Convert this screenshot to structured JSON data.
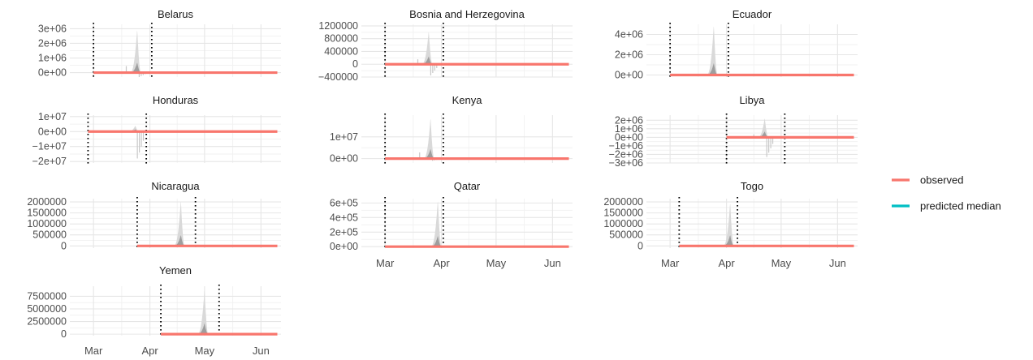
{
  "chart_data": {
    "type": "line",
    "layout": "small-multiples",
    "grid": true,
    "legend_position": "right",
    "x_ticks": [
      "Mar",
      "Apr",
      "May",
      "Jun"
    ],
    "x_domain": [
      "2020-02-17",
      "2020-06-12"
    ],
    "legend": {
      "entries": [
        {
          "label": "observed",
          "color": "#F8766D"
        },
        {
          "label": "predicted median",
          "color": "#00BFC4"
        }
      ]
    },
    "panels": [
      {
        "title": "Belarus",
        "yticks": [
          0,
          1000000,
          2000000,
          3000000
        ],
        "ytick_labels": [
          "0e+00",
          "1e+06",
          "2e+06",
          "3e+06"
        ],
        "ylim": [
          -300000,
          3300000
        ],
        "vlines": [
          "2020-03-01",
          "2020-04-02"
        ],
        "observed": {
          "start": "2020-03-01",
          "end": "2020-06-10",
          "value": 0
        },
        "predicted": {
          "start": "2020-03-01",
          "end": "2020-04-02",
          "peak_date": "2020-03-25",
          "peak_outer": 3000000,
          "peak_inner": 700000,
          "spike_min": -300000
        }
      },
      {
        "title": "Bosnia and Herzegovina",
        "yticks": [
          -400000,
          0,
          400000,
          800000,
          1200000
        ],
        "ytick_labels": [
          "−400000",
          "0",
          "400000",
          "800000",
          "1200000"
        ],
        "ylim": [
          -400000,
          1250000
        ],
        "vlines": [
          "2020-03-01",
          "2020-04-02"
        ],
        "observed": {
          "start": "2020-03-01",
          "end": "2020-06-10",
          "value": 0
        },
        "predicted": {
          "start": "2020-03-01",
          "end": "2020-04-02",
          "peak_date": "2020-03-25",
          "peak_outer": 1050000,
          "peak_inner": 250000,
          "spike_min": -350000
        }
      },
      {
        "title": "Ecuador",
        "yticks": [
          0,
          2000000,
          4000000
        ],
        "ytick_labels": [
          "0e+00",
          "2e+06",
          "4e+06"
        ],
        "ylim": [
          -200000,
          5000000
        ],
        "vlines": [
          "2020-03-01",
          "2020-04-02"
        ],
        "observed": {
          "start": "2020-03-01",
          "end": "2020-06-10",
          "value": 0
        },
        "predicted": {
          "start": "2020-03-01",
          "end": "2020-04-02",
          "peak_date": "2020-03-25",
          "peak_outer": 5000000,
          "peak_inner": 1200000,
          "spike_min": 0
        }
      },
      {
        "title": "Honduras",
        "yticks": [
          -20000000,
          -10000000,
          0,
          10000000
        ],
        "ytick_labels": [
          "−2e+07",
          "−1e+07",
          "0e+00",
          "1e+07"
        ],
        "ylim": [
          -21000000,
          11000000
        ],
        "vlines": [
          "2020-02-27",
          "2020-03-30"
        ],
        "observed": {
          "start": "2020-02-27",
          "end": "2020-06-10",
          "value": 0
        },
        "predicted": {
          "start": "2020-02-27",
          "end": "2020-03-30",
          "peak_date": "2020-03-24",
          "peak_outer": 4000000,
          "peak_inner": 1500000,
          "spike_min": -18000000
        }
      },
      {
        "title": "Kenya",
        "yticks": [
          0,
          10000000
        ],
        "ytick_labels": [
          "0e+00",
          "1e+07"
        ],
        "ylim": [
          -2000000,
          20000000
        ],
        "vlines": [
          "2020-03-01",
          "2020-04-02"
        ],
        "observed": {
          "start": "2020-03-01",
          "end": "2020-06-10",
          "value": 0
        },
        "predicted": {
          "start": "2020-03-01",
          "end": "2020-04-02",
          "peak_date": "2020-03-26",
          "peak_outer": 19000000,
          "peak_inner": 4500000,
          "spike_min": -1000000
        }
      },
      {
        "title": "Libya",
        "yticks": [
          -3000000,
          -2000000,
          -1000000,
          0,
          1000000,
          2000000
        ],
        "ytick_labels": [
          "−3e+06",
          "−2e+06",
          "−1e+06",
          "0e+00",
          "1e+06",
          "2e+06"
        ],
        "ylim": [
          -3000000,
          2600000
        ],
        "vlines": [
          "2020-04-01",
          "2020-05-03"
        ],
        "observed": {
          "start": "2020-04-01",
          "end": "2020-06-10",
          "value": 0
        },
        "predicted": {
          "start": "2020-04-01",
          "end": "2020-05-03",
          "peak_date": "2020-04-22",
          "peak_outer": 2300000,
          "peak_inner": 700000,
          "spike_min": -2300000
        }
      },
      {
        "title": "Nicaragua",
        "yticks": [
          0,
          500000,
          1000000,
          1500000,
          2000000
        ],
        "ytick_labels": [
          "0",
          "500000",
          "1000000",
          "1500000",
          "2000000"
        ],
        "ylim": [
          -100000,
          2150000
        ],
        "vlines": [
          "2020-03-25",
          "2020-04-26"
        ],
        "observed": {
          "start": "2020-03-25",
          "end": "2020-06-10",
          "value": 0
        },
        "predicted": {
          "start": "2020-03-25",
          "end": "2020-04-26",
          "peak_date": "2020-04-18",
          "peak_outer": 2100000,
          "peak_inner": 500000,
          "spike_min": 0
        }
      },
      {
        "title": "Qatar",
        "yticks": [
          0,
          200000,
          400000,
          600000
        ],
        "ytick_labels": [
          "0e+00",
          "2e+05",
          "4e+05",
          "6e+05"
        ],
        "ylim": [
          -20000,
          660000
        ],
        "vlines": [
          "2020-03-01",
          "2020-04-02"
        ],
        "observed": {
          "start": "2020-03-01",
          "end": "2020-06-10",
          "value": 0
        },
        "predicted": {
          "start": "2020-03-01",
          "end": "2020-04-02",
          "peak_date": "2020-03-30",
          "peak_outer": 650000,
          "peak_inner": 150000,
          "spike_min": 0
        }
      },
      {
        "title": "Togo",
        "yticks": [
          0,
          500000,
          1000000,
          1500000,
          2000000
        ],
        "ytick_labels": [
          "0",
          "500000",
          "1000000",
          "1500000",
          "2000000"
        ],
        "ylim": [
          -100000,
          2150000
        ],
        "vlines": [
          "2020-03-06",
          "2020-04-07"
        ],
        "observed": {
          "start": "2020-03-06",
          "end": "2020-06-10",
          "value": 0
        },
        "predicted": {
          "start": "2020-03-06",
          "end": "2020-04-07",
          "peak_date": "2020-04-03",
          "peak_outer": 2000000,
          "peak_inner": 500000,
          "spike_min": 0
        }
      },
      {
        "title": "Yemen",
        "yticks": [
          0,
          2500000,
          5000000,
          7500000
        ],
        "ytick_labels": [
          "0",
          "2500000",
          "5000000",
          "7500000"
        ],
        "ylim": [
          -300000,
          9500000
        ],
        "vlines": [
          "2020-04-07",
          "2020-05-09"
        ],
        "observed": {
          "start": "2020-04-07",
          "end": "2020-06-10",
          "value": 0
        },
        "predicted": {
          "start": "2020-04-07",
          "end": "2020-05-09",
          "peak_date": "2020-05-01",
          "peak_outer": 9000000,
          "peak_inner": 2200000,
          "spike_min": 0
        }
      }
    ]
  }
}
